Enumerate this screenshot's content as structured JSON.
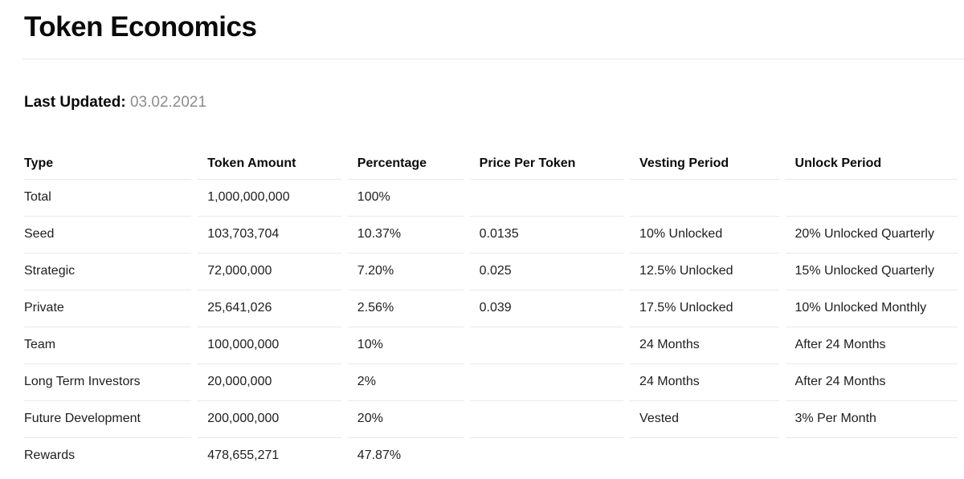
{
  "header": {
    "title": "Token Economics"
  },
  "meta": {
    "last_updated_label": "Last Updated:",
    "last_updated_value": "03.02.2021"
  },
  "table": {
    "columns": [
      "Type",
      "Token Amount",
      "Percentage",
      "Price Per Token",
      "Vesting Period",
      "Unlock Period"
    ],
    "rows": [
      {
        "type": "Total",
        "token_amount": "1,000,000,000",
        "percentage": "100%",
        "price_per_token": "",
        "vesting_period": "",
        "unlock_period": ""
      },
      {
        "type": "Seed",
        "token_amount": "103,703,704",
        "percentage": "10.37%",
        "price_per_token": "0.0135",
        "vesting_period": "10% Unlocked",
        "unlock_period": "20% Unlocked Quarterly"
      },
      {
        "type": "Strategic",
        "token_amount": "72,000,000",
        "percentage": "7.20%",
        "price_per_token": "0.025",
        "vesting_period": "12.5% Unlocked",
        "unlock_period": "15% Unlocked Quarterly"
      },
      {
        "type": "Private",
        "token_amount": "25,641,026",
        "percentage": "2.56%",
        "price_per_token": "0.039",
        "vesting_period": "17.5% Unlocked",
        "unlock_period": "10% Unlocked Monthly"
      },
      {
        "type": "Team",
        "token_amount": "100,000,000",
        "percentage": "10%",
        "price_per_token": "",
        "vesting_period": "24 Months",
        "unlock_period": "After 24 Months"
      },
      {
        "type": "Long Term Investors",
        "token_amount": "20,000,000",
        "percentage": "2%",
        "price_per_token": "",
        "vesting_period": "24 Months",
        "unlock_period": "After 24 Months"
      },
      {
        "type": "Future Development",
        "token_amount": "200,000,000",
        "percentage": "20%",
        "price_per_token": "",
        "vesting_period": "Vested",
        "unlock_period": "3% Per Month"
      },
      {
        "type": "Rewards",
        "token_amount": "478,655,271",
        "percentage": "47.87%",
        "price_per_token": "",
        "vesting_period": "",
        "unlock_period": ""
      }
    ]
  },
  "colors": {
    "heading_text": "#0a0a0a",
    "body_text": "#202022",
    "muted_text": "#8c8c8e",
    "border": "#e9e9eb",
    "background": "#ffffff"
  }
}
